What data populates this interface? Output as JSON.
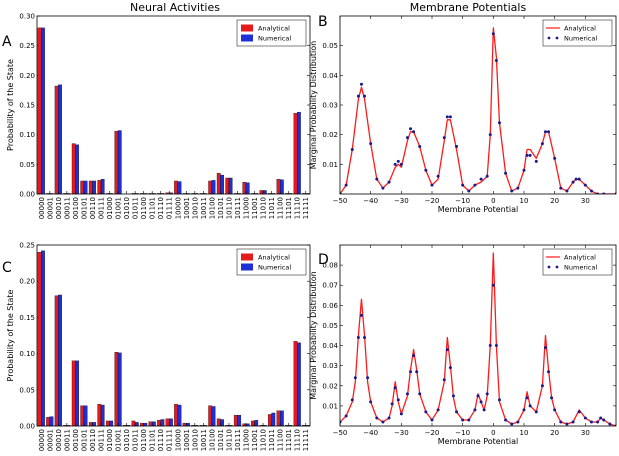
{
  "titles": {
    "left": "Neural Activities",
    "right": "Membrane Potentials"
  },
  "colors": {
    "analytical": "#e41a1c",
    "numerical": "#1f2fd6",
    "curve": "#ff1a1a",
    "dots": "#1a1a8c"
  },
  "chart_data": [
    {
      "id": "A",
      "letter": "A",
      "type": "bar",
      "ylabel": "Probability of the State",
      "ylim": [
        0,
        0.3
      ],
      "yticks": [
        0.0,
        0.05,
        0.1,
        0.15,
        0.2,
        0.25,
        0.3
      ],
      "ytick_labels": [
        "0.00",
        "0.05",
        "0.10",
        "0.15",
        "0.20",
        "0.25",
        "0.30"
      ],
      "legend": "top-right",
      "categories": [
        "00000",
        "00001",
        "00010",
        "00011",
        "00100",
        "00101",
        "00110",
        "00111",
        "01000",
        "01001",
        "01010",
        "01011",
        "01100",
        "01101",
        "01110",
        "01111",
        "10000",
        "10001",
        "10010",
        "10011",
        "10100",
        "10101",
        "10110",
        "10111",
        "11000",
        "11001",
        "11010",
        "11011",
        "11100",
        "11101",
        "11110",
        "11111"
      ],
      "series": [
        {
          "name": "Analytical",
          "values": [
            0.28,
            0.001,
            0.182,
            0.001,
            0.085,
            0.022,
            0.022,
            0.023,
            0.001,
            0.106,
            0.0,
            0.001,
            0.001,
            0.001,
            0.001,
            0.002,
            0.022,
            0.001,
            0.001,
            0.001,
            0.022,
            0.035,
            0.027,
            0.001,
            0.02,
            0.001,
            0.006,
            0.001,
            0.025,
            0.001,
            0.136,
            0.001
          ]
        },
        {
          "name": "Numerical",
          "values": [
            0.28,
            0.001,
            0.184,
            0.001,
            0.083,
            0.022,
            0.022,
            0.025,
            0.001,
            0.107,
            0.0,
            0.001,
            0.001,
            0.001,
            0.001,
            0.002,
            0.021,
            0.001,
            0.001,
            0.001,
            0.023,
            0.032,
            0.027,
            0.001,
            0.019,
            0.001,
            0.006,
            0.001,
            0.024,
            0.001,
            0.138,
            0.001
          ]
        }
      ]
    },
    {
      "id": "B",
      "letter": "B",
      "type": "line",
      "xlabel": "Membrane Potential",
      "ylabel": "Marginal Probability Distribution",
      "xlim": [
        -50,
        40
      ],
      "ylim": [
        0,
        0.06
      ],
      "xticks": [
        -50,
        -40,
        -30,
        -20,
        -10,
        0,
        10,
        20,
        30
      ],
      "yticks": [
        0.01,
        0.02,
        0.03,
        0.04,
        0.05
      ],
      "ytick_labels": [
        "0.01",
        "0.02",
        "0.03",
        "0.04",
        "0.05"
      ],
      "legend": "top-right",
      "series": [
        {
          "name": "Analytical",
          "style": "line",
          "x": [
            -50,
            -48,
            -46,
            -44,
            -43,
            -42,
            -40,
            -38,
            -36,
            -34,
            -32,
            -31,
            -30,
            -28,
            -27,
            -26,
            -24,
            -22,
            -20,
            -18,
            -16,
            -15,
            -14,
            -12,
            -10,
            -8,
            -6,
            -4,
            -2,
            -1,
            0,
            1,
            2,
            4,
            6,
            8,
            10,
            11,
            12,
            14,
            16,
            17,
            18,
            20,
            22,
            24,
            26,
            27,
            28,
            30,
            32,
            34,
            36,
            40
          ],
          "y": [
            0.0,
            0.003,
            0.015,
            0.032,
            0.036,
            0.032,
            0.017,
            0.005,
            0.002,
            0.004,
            0.009,
            0.01,
            0.009,
            0.018,
            0.021,
            0.021,
            0.016,
            0.008,
            0.003,
            0.005,
            0.018,
            0.025,
            0.025,
            0.015,
            0.003,
            0.001,
            0.003,
            0.004,
            0.006,
            0.02,
            0.056,
            0.046,
            0.024,
            0.007,
            0.001,
            0.002,
            0.008,
            0.015,
            0.015,
            0.012,
            0.017,
            0.021,
            0.021,
            0.012,
            0.002,
            0.001,
            0.004,
            0.005,
            0.005,
            0.003,
            0.001,
            0.0,
            0.0,
            0.0
          ]
        },
        {
          "name": "Numerical",
          "style": "dots",
          "x": [
            -50,
            -48,
            -46,
            -44,
            -43,
            -42,
            -40,
            -38,
            -36,
            -34,
            -32,
            -31,
            -30,
            -28,
            -27,
            -26,
            -24,
            -22,
            -20,
            -18,
            -16,
            -15,
            -14,
            -12,
            -10,
            -8,
            -6,
            -4,
            -2,
            -1,
            0,
            1,
            2,
            4,
            6,
            8,
            10,
            11,
            12,
            14,
            16,
            17,
            18,
            20,
            22,
            24,
            26,
            27,
            28,
            30,
            32,
            34,
            36,
            40
          ],
          "y": [
            0.0,
            0.003,
            0.015,
            0.033,
            0.037,
            0.033,
            0.017,
            0.005,
            0.002,
            0.004,
            0.01,
            0.011,
            0.01,
            0.019,
            0.022,
            0.021,
            0.016,
            0.008,
            0.003,
            0.006,
            0.019,
            0.026,
            0.026,
            0.016,
            0.003,
            0.001,
            0.003,
            0.005,
            0.006,
            0.02,
            0.054,
            0.045,
            0.024,
            0.007,
            0.001,
            0.002,
            0.008,
            0.013,
            0.013,
            0.011,
            0.017,
            0.021,
            0.021,
            0.012,
            0.002,
            0.001,
            0.004,
            0.005,
            0.005,
            0.003,
            0.001,
            0.0,
            0.0,
            0.0
          ]
        }
      ]
    },
    {
      "id": "C",
      "letter": "C",
      "type": "bar",
      "ylabel": "Probability of the State",
      "ylim": [
        0,
        0.25
      ],
      "yticks": [
        0.0,
        0.05,
        0.1,
        0.15,
        0.2,
        0.25
      ],
      "ytick_labels": [
        "0.00",
        "0.05",
        "0.10",
        "0.15",
        "0.20",
        "0.25"
      ],
      "legend": "top-right",
      "categories": [
        "00000",
        "00001",
        "00010",
        "00011",
        "00100",
        "00101",
        "00110",
        "00111",
        "01000",
        "01001",
        "01010",
        "01011",
        "01100",
        "01101",
        "01110",
        "01111",
        "10000",
        "10001",
        "10010",
        "10011",
        "10100",
        "10101",
        "10110",
        "10111",
        "11000",
        "11001",
        "11010",
        "11011",
        "11100",
        "11101",
        "11110",
        "11111"
      ],
      "series": [
        {
          "name": "Analytical",
          "values": [
            0.24,
            0.012,
            0.18,
            0.001,
            0.09,
            0.028,
            0.005,
            0.03,
            0.007,
            0.102,
            0.001,
            0.007,
            0.004,
            0.006,
            0.008,
            0.01,
            0.03,
            0.004,
            0.001,
            0.001,
            0.028,
            0.01,
            0.001,
            0.015,
            0.003,
            0.007,
            0.001,
            0.016,
            0.021,
            0.001,
            0.117,
            0.001
          ]
        },
        {
          "name": "Numerical",
          "values": [
            0.242,
            0.013,
            0.181,
            0.001,
            0.09,
            0.028,
            0.005,
            0.029,
            0.007,
            0.101,
            0.001,
            0.005,
            0.004,
            0.006,
            0.009,
            0.01,
            0.029,
            0.004,
            0.001,
            0.001,
            0.027,
            0.009,
            0.001,
            0.015,
            0.003,
            0.008,
            0.001,
            0.018,
            0.021,
            0.001,
            0.115,
            0.001
          ]
        }
      ]
    },
    {
      "id": "D",
      "letter": "D",
      "type": "line",
      "xlabel": "Membrane Potential",
      "ylabel": "Marginal Probability Distribution",
      "xlim": [
        -50,
        40
      ],
      "ylim": [
        0,
        0.09
      ],
      "xticks": [
        -50,
        -40,
        -30,
        -20,
        -10,
        0,
        10,
        20,
        30
      ],
      "yticks": [
        0.01,
        0.02,
        0.03,
        0.04,
        0.05,
        0.06,
        0.07,
        0.08
      ],
      "ytick_labels": [
        "0.01",
        "0.02",
        "0.03",
        "0.04",
        "0.05",
        "0.06",
        "0.07",
        "0.08"
      ],
      "legend": "top-right",
      "series": [
        {
          "name": "Analytical",
          "style": "line",
          "x": [
            -50,
            -48,
            -46,
            -45,
            -44,
            -43,
            -42,
            -41,
            -40,
            -38,
            -36,
            -34,
            -33,
            -32,
            -31,
            -30,
            -28,
            -27,
            -26,
            -25,
            -24,
            -22,
            -20,
            -18,
            -16,
            -15,
            -14,
            -13,
            -12,
            -10,
            -8,
            -6,
            -5,
            -4,
            -3,
            -2,
            -1,
            0,
            1,
            2,
            4,
            6,
            8,
            10,
            11,
            12,
            14,
            16,
            17,
            18,
            19,
            20,
            22,
            24,
            26,
            28,
            30,
            32,
            34,
            35,
            36,
            38,
            40
          ],
          "y": [
            0.002,
            0.005,
            0.012,
            0.022,
            0.045,
            0.063,
            0.045,
            0.022,
            0.012,
            0.004,
            0.002,
            0.004,
            0.01,
            0.022,
            0.012,
            0.006,
            0.015,
            0.028,
            0.038,
            0.028,
            0.016,
            0.007,
            0.003,
            0.008,
            0.022,
            0.044,
            0.03,
            0.014,
            0.007,
            0.003,
            0.003,
            0.008,
            0.016,
            0.012,
            0.008,
            0.015,
            0.04,
            0.086,
            0.04,
            0.012,
            0.003,
            0.001,
            0.002,
            0.008,
            0.017,
            0.01,
            0.007,
            0.02,
            0.045,
            0.028,
            0.014,
            0.008,
            0.002,
            0.001,
            0.002,
            0.008,
            0.004,
            0.002,
            0.002,
            0.004,
            0.003,
            0.001,
            0.0
          ]
        },
        {
          "name": "Numerical",
          "style": "dots",
          "x": [
            -50,
            -48,
            -46,
            -45,
            -44,
            -43,
            -42,
            -41,
            -40,
            -38,
            -36,
            -34,
            -33,
            -32,
            -31,
            -30,
            -28,
            -27,
            -26,
            -25,
            -24,
            -22,
            -20,
            -18,
            -16,
            -15,
            -14,
            -13,
            -12,
            -10,
            -8,
            -6,
            -5,
            -4,
            -3,
            -2,
            -1,
            0,
            1,
            2,
            4,
            6,
            8,
            10,
            11,
            12,
            14,
            16,
            17,
            18,
            19,
            20,
            22,
            24,
            26,
            28,
            30,
            32,
            34,
            35,
            36,
            38,
            40
          ],
          "y": [
            0.002,
            0.005,
            0.013,
            0.024,
            0.044,
            0.055,
            0.044,
            0.024,
            0.012,
            0.004,
            0.002,
            0.004,
            0.011,
            0.019,
            0.013,
            0.006,
            0.016,
            0.027,
            0.035,
            0.027,
            0.016,
            0.007,
            0.003,
            0.008,
            0.023,
            0.038,
            0.029,
            0.015,
            0.007,
            0.003,
            0.003,
            0.008,
            0.015,
            0.012,
            0.008,
            0.016,
            0.04,
            0.07,
            0.04,
            0.013,
            0.003,
            0.001,
            0.002,
            0.008,
            0.014,
            0.01,
            0.007,
            0.02,
            0.039,
            0.027,
            0.014,
            0.008,
            0.002,
            0.001,
            0.002,
            0.007,
            0.004,
            0.002,
            0.002,
            0.004,
            0.003,
            0.001,
            0.0
          ]
        }
      ]
    }
  ]
}
